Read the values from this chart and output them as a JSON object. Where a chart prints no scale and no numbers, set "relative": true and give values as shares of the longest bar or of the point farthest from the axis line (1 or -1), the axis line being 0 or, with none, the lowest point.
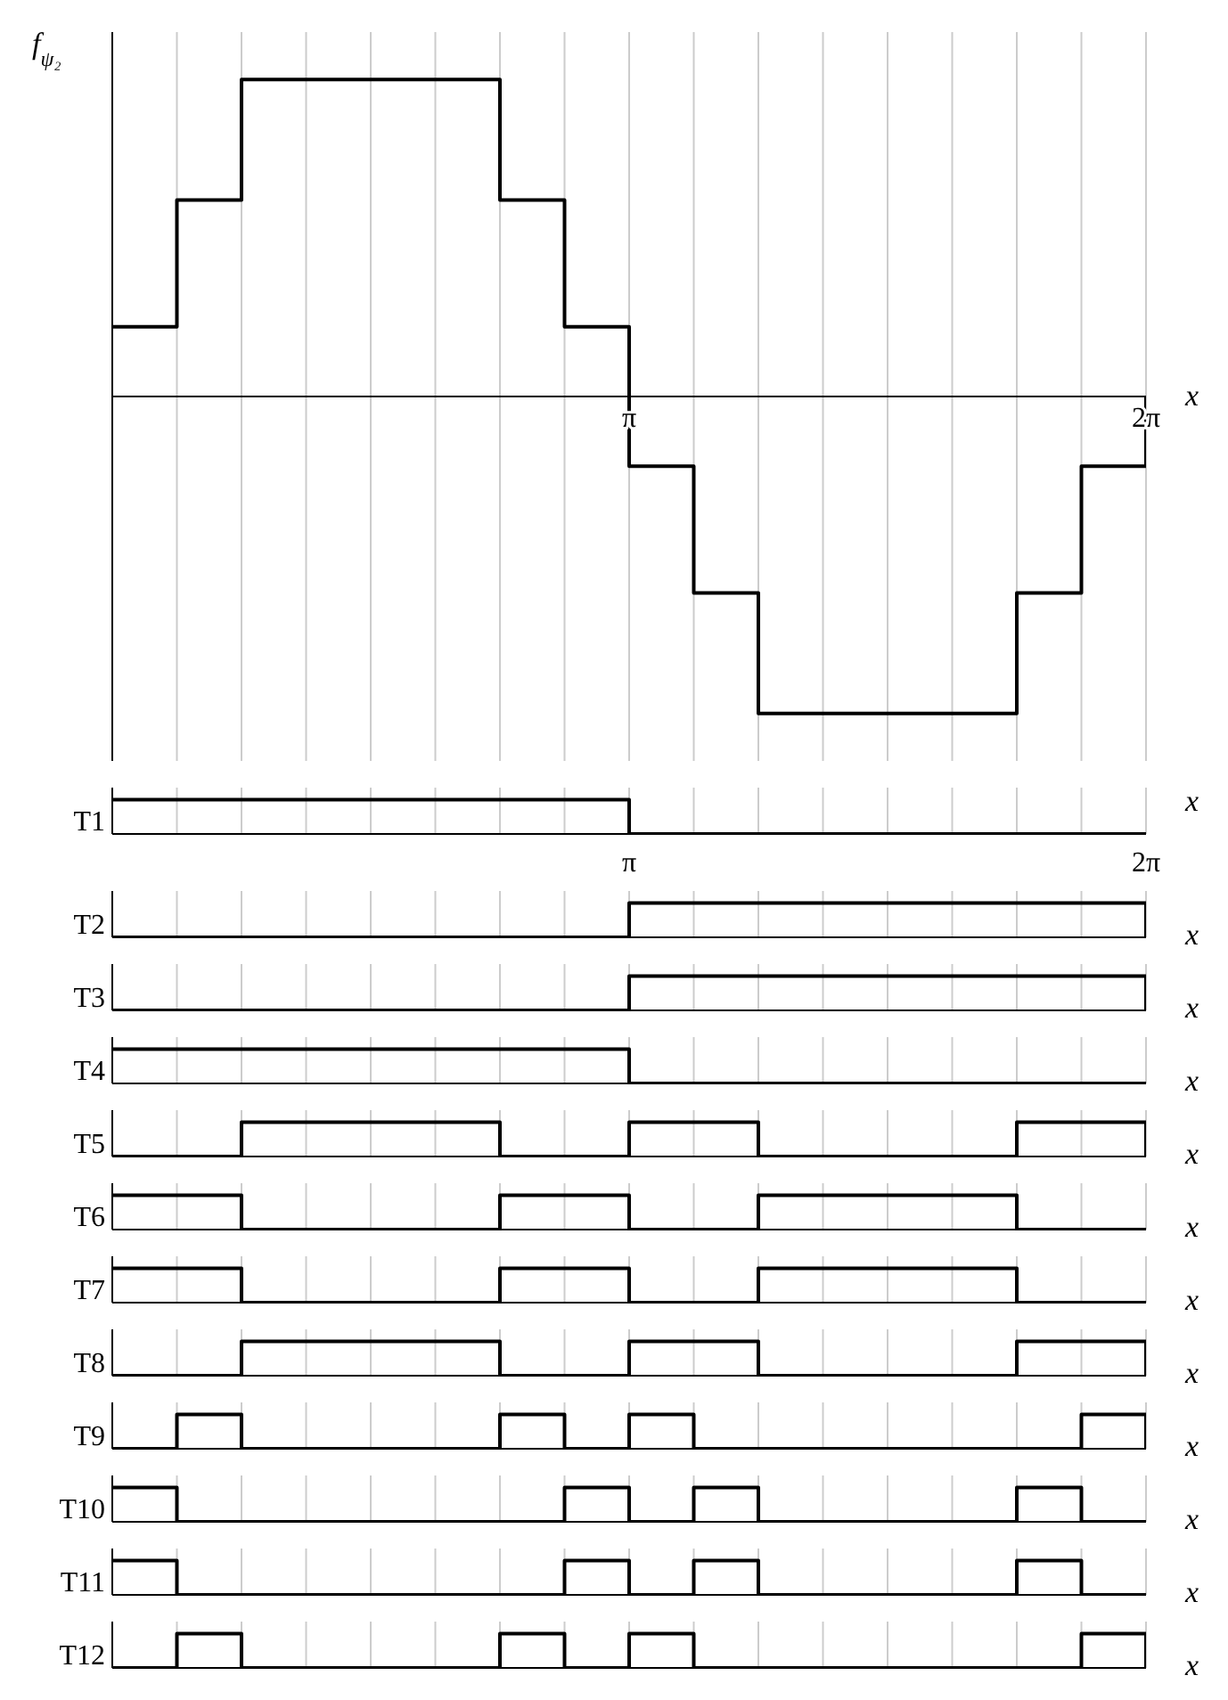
{
  "chart_data": [
    {
      "type": "step",
      "ylabel": "f$_{ψ₂}$",
      "xlabel": "x",
      "relative": true,
      "grid": "x",
      "tick_labels": "x",
      "color": "#000000",
      "xlim": [
        0,
        6.2832
      ],
      "xticks": [
        {
          "value": 0,
          "label": null
        },
        {
          "value": 0.3927,
          "label": null
        },
        {
          "value": 0.7854,
          "label": null
        },
        {
          "value": 1.1781,
          "label": null
        },
        {
          "value": 1.5708,
          "label": null
        },
        {
          "value": 1.9635,
          "label": null
        },
        {
          "value": 2.3562,
          "label": null
        },
        {
          "value": 2.7489,
          "label": null
        },
        {
          "value": 3.1416,
          "label": "π"
        },
        {
          "value": 3.5343,
          "label": null
        },
        {
          "value": 3.927,
          "label": null
        },
        {
          "value": 4.3197,
          "label": null
        },
        {
          "value": 4.7124,
          "label": null
        },
        {
          "value": 5.1051,
          "label": null
        },
        {
          "value": 5.4978,
          "label": null
        },
        {
          "value": 5.8905,
          "label": null
        },
        {
          "value": 6.2832,
          "label": "2π"
        }
      ],
      "x": [
        0,
        0.3927,
        0.7854,
        2.3562,
        2.7489,
        3.1416,
        3.5343,
        3.927,
        5.4978,
        5.8905,
        6.2832
      ],
      "values": [
        0.22,
        0.62,
        1,
        0.62,
        0.22,
        -0.22,
        -0.62,
        -1,
        -0.62,
        -0.22,
        0
      ]
    },
    {
      "type": "step",
      "ylabel": "T1",
      "xlabel": "x",
      "relative": true,
      "grid": "x",
      "tick_labels": "x",
      "color": "#000000",
      "xlim": [
        0,
        6.2832
      ],
      "xticks": [
        {
          "value": 0,
          "label": null
        },
        {
          "value": 0.3927,
          "label": null
        },
        {
          "value": 0.7854,
          "label": null
        },
        {
          "value": 1.1781,
          "label": null
        },
        {
          "value": 1.5708,
          "label": null
        },
        {
          "value": 1.9635,
          "label": null
        },
        {
          "value": 2.3562,
          "label": null
        },
        {
          "value": 2.7489,
          "label": null
        },
        {
          "value": 3.1416,
          "label": "π"
        },
        {
          "value": 3.5343,
          "label": null
        },
        {
          "value": 3.927,
          "label": null
        },
        {
          "value": 4.3197,
          "label": null
        },
        {
          "value": 4.7124,
          "label": null
        },
        {
          "value": 5.1051,
          "label": null
        },
        {
          "value": 5.4978,
          "label": null
        },
        {
          "value": 5.8905,
          "label": null
        },
        {
          "value": 6.2832,
          "label": "2π"
        }
      ],
      "x": [
        0,
        3.1416,
        6.2832
      ],
      "values": [
        1,
        0,
        0
      ]
    },
    {
      "type": "step",
      "ylabel": "T2",
      "xlabel": "x",
      "relative": true,
      "grid": "x",
      "tick_labels": false,
      "color": "#000000",
      "xlim": [
        0,
        6.2832
      ],
      "xticks": [
        {
          "value": 0,
          "label": null
        },
        {
          "value": 0.3927,
          "label": null
        },
        {
          "value": 0.7854,
          "label": null
        },
        {
          "value": 1.1781,
          "label": null
        },
        {
          "value": 1.5708,
          "label": null
        },
        {
          "value": 1.9635,
          "label": null
        },
        {
          "value": 2.3562,
          "label": null
        },
        {
          "value": 2.7489,
          "label": null
        },
        {
          "value": 3.1416,
          "label": null
        },
        {
          "value": 3.5343,
          "label": null
        },
        {
          "value": 3.927,
          "label": null
        },
        {
          "value": 4.3197,
          "label": null
        },
        {
          "value": 4.7124,
          "label": null
        },
        {
          "value": 5.1051,
          "label": null
        },
        {
          "value": 5.4978,
          "label": null
        },
        {
          "value": 5.8905,
          "label": null
        },
        {
          "value": 6.2832,
          "label": null
        }
      ],
      "x": [
        0,
        3.1416,
        6.2832
      ],
      "values": [
        0,
        1,
        0
      ]
    },
    {
      "type": "step",
      "ylabel": "T3",
      "xlabel": "x",
      "relative": true,
      "grid": "x",
      "tick_labels": false,
      "color": "#000000",
      "xlim": [
        0,
        6.2832
      ],
      "xticks": [
        {
          "value": 0,
          "label": null
        },
        {
          "value": 0.3927,
          "label": null
        },
        {
          "value": 0.7854,
          "label": null
        },
        {
          "value": 1.1781,
          "label": null
        },
        {
          "value": 1.5708,
          "label": null
        },
        {
          "value": 1.9635,
          "label": null
        },
        {
          "value": 2.3562,
          "label": null
        },
        {
          "value": 2.7489,
          "label": null
        },
        {
          "value": 3.1416,
          "label": null
        },
        {
          "value": 3.5343,
          "label": null
        },
        {
          "value": 3.927,
          "label": null
        },
        {
          "value": 4.3197,
          "label": null
        },
        {
          "value": 4.7124,
          "label": null
        },
        {
          "value": 5.1051,
          "label": null
        },
        {
          "value": 5.4978,
          "label": null
        },
        {
          "value": 5.8905,
          "label": null
        },
        {
          "value": 6.2832,
          "label": null
        }
      ],
      "x": [
        0,
        3.1416,
        6.2832
      ],
      "values": [
        0,
        1,
        0
      ]
    },
    {
      "type": "step",
      "ylabel": "T4",
      "xlabel": "x",
      "relative": true,
      "grid": "x",
      "tick_labels": false,
      "color": "#000000",
      "xlim": [
        0,
        6.2832
      ],
      "xticks": [
        {
          "value": 0,
          "label": null
        },
        {
          "value": 0.3927,
          "label": null
        },
        {
          "value": 0.7854,
          "label": null
        },
        {
          "value": 1.1781,
          "label": null
        },
        {
          "value": 1.5708,
          "label": null
        },
        {
          "value": 1.9635,
          "label": null
        },
        {
          "value": 2.3562,
          "label": null
        },
        {
          "value": 2.7489,
          "label": null
        },
        {
          "value": 3.1416,
          "label": null
        },
        {
          "value": 3.5343,
          "label": null
        },
        {
          "value": 3.927,
          "label": null
        },
        {
          "value": 4.3197,
          "label": null
        },
        {
          "value": 4.7124,
          "label": null
        },
        {
          "value": 5.1051,
          "label": null
        },
        {
          "value": 5.4978,
          "label": null
        },
        {
          "value": 5.8905,
          "label": null
        },
        {
          "value": 6.2832,
          "label": null
        }
      ],
      "x": [
        0,
        3.1416,
        6.2832
      ],
      "values": [
        1,
        0,
        0
      ]
    },
    {
      "type": "step",
      "ylabel": "T5",
      "xlabel": "x",
      "relative": true,
      "grid": "x",
      "tick_labels": false,
      "color": "#000000",
      "xlim": [
        0,
        6.2832
      ],
      "xticks": [
        {
          "value": 0,
          "label": null
        },
        {
          "value": 0.3927,
          "label": null
        },
        {
          "value": 0.7854,
          "label": null
        },
        {
          "value": 1.1781,
          "label": null
        },
        {
          "value": 1.5708,
          "label": null
        },
        {
          "value": 1.9635,
          "label": null
        },
        {
          "value": 2.3562,
          "label": null
        },
        {
          "value": 2.7489,
          "label": null
        },
        {
          "value": 3.1416,
          "label": null
        },
        {
          "value": 3.5343,
          "label": null
        },
        {
          "value": 3.927,
          "label": null
        },
        {
          "value": 4.3197,
          "label": null
        },
        {
          "value": 4.7124,
          "label": null
        },
        {
          "value": 5.1051,
          "label": null
        },
        {
          "value": 5.4978,
          "label": null
        },
        {
          "value": 5.8905,
          "label": null
        },
        {
          "value": 6.2832,
          "label": null
        }
      ],
      "x": [
        0,
        0.7854,
        2.3562,
        3.1416,
        3.927,
        5.4978,
        6.2832
      ],
      "values": [
        0,
        1,
        0,
        1,
        0,
        1,
        0
      ]
    },
    {
      "type": "step",
      "ylabel": "T6",
      "xlabel": "x",
      "relative": true,
      "grid": "x",
      "tick_labels": false,
      "color": "#000000",
      "xlim": [
        0,
        6.2832
      ],
      "xticks": [
        {
          "value": 0,
          "label": null
        },
        {
          "value": 0.3927,
          "label": null
        },
        {
          "value": 0.7854,
          "label": null
        },
        {
          "value": 1.1781,
          "label": null
        },
        {
          "value": 1.5708,
          "label": null
        },
        {
          "value": 1.9635,
          "label": null
        },
        {
          "value": 2.3562,
          "label": null
        },
        {
          "value": 2.7489,
          "label": null
        },
        {
          "value": 3.1416,
          "label": null
        },
        {
          "value": 3.5343,
          "label": null
        },
        {
          "value": 3.927,
          "label": null
        },
        {
          "value": 4.3197,
          "label": null
        },
        {
          "value": 4.7124,
          "label": null
        },
        {
          "value": 5.1051,
          "label": null
        },
        {
          "value": 5.4978,
          "label": null
        },
        {
          "value": 5.8905,
          "label": null
        },
        {
          "value": 6.2832,
          "label": null
        }
      ],
      "x": [
        0,
        0.7854,
        2.3562,
        3.1416,
        3.927,
        5.4978,
        6.2832
      ],
      "values": [
        1,
        0,
        1,
        0,
        1,
        0,
        0
      ]
    },
    {
      "type": "step",
      "ylabel": "T7",
      "xlabel": "x",
      "relative": true,
      "grid": "x",
      "tick_labels": false,
      "color": "#000000",
      "xlim": [
        0,
        6.2832
      ],
      "xticks": [
        {
          "value": 0,
          "label": null
        },
        {
          "value": 0.3927,
          "label": null
        },
        {
          "value": 0.7854,
          "label": null
        },
        {
          "value": 1.1781,
          "label": null
        },
        {
          "value": 1.5708,
          "label": null
        },
        {
          "value": 1.9635,
          "label": null
        },
        {
          "value": 2.3562,
          "label": null
        },
        {
          "value": 2.7489,
          "label": null
        },
        {
          "value": 3.1416,
          "label": null
        },
        {
          "value": 3.5343,
          "label": null
        },
        {
          "value": 3.927,
          "label": null
        },
        {
          "value": 4.3197,
          "label": null
        },
        {
          "value": 4.7124,
          "label": null
        },
        {
          "value": 5.1051,
          "label": null
        },
        {
          "value": 5.4978,
          "label": null
        },
        {
          "value": 5.8905,
          "label": null
        },
        {
          "value": 6.2832,
          "label": null
        }
      ],
      "x": [
        0,
        0.7854,
        2.3562,
        3.1416,
        3.927,
        5.4978,
        6.2832
      ],
      "values": [
        1,
        0,
        1,
        0,
        1,
        0,
        0
      ]
    },
    {
      "type": "step",
      "ylabel": "T8",
      "xlabel": "x",
      "relative": true,
      "grid": "x",
      "tick_labels": false,
      "color": "#000000",
      "xlim": [
        0,
        6.2832
      ],
      "xticks": [
        {
          "value": 0,
          "label": null
        },
        {
          "value": 0.3927,
          "label": null
        },
        {
          "value": 0.7854,
          "label": null
        },
        {
          "value": 1.1781,
          "label": null
        },
        {
          "value": 1.5708,
          "label": null
        },
        {
          "value": 1.9635,
          "label": null
        },
        {
          "value": 2.3562,
          "label": null
        },
        {
          "value": 2.7489,
          "label": null
        },
        {
          "value": 3.1416,
          "label": null
        },
        {
          "value": 3.5343,
          "label": null
        },
        {
          "value": 3.927,
          "label": null
        },
        {
          "value": 4.3197,
          "label": null
        },
        {
          "value": 4.7124,
          "label": null
        },
        {
          "value": 5.1051,
          "label": null
        },
        {
          "value": 5.4978,
          "label": null
        },
        {
          "value": 5.8905,
          "label": null
        },
        {
          "value": 6.2832,
          "label": null
        }
      ],
      "x": [
        0,
        0.7854,
        2.3562,
        3.1416,
        3.927,
        5.4978,
        6.2832
      ],
      "values": [
        0,
        1,
        0,
        1,
        0,
        1,
        0
      ]
    },
    {
      "type": "step",
      "ylabel": "T9",
      "xlabel": "x",
      "relative": true,
      "grid": "x",
      "tick_labels": false,
      "color": "#000000",
      "xlim": [
        0,
        6.2832
      ],
      "xticks": [
        {
          "value": 0,
          "label": null
        },
        {
          "value": 0.3927,
          "label": null
        },
        {
          "value": 0.7854,
          "label": null
        },
        {
          "value": 1.1781,
          "label": null
        },
        {
          "value": 1.5708,
          "label": null
        },
        {
          "value": 1.9635,
          "label": null
        },
        {
          "value": 2.3562,
          "label": null
        },
        {
          "value": 2.7489,
          "label": null
        },
        {
          "value": 3.1416,
          "label": null
        },
        {
          "value": 3.5343,
          "label": null
        },
        {
          "value": 3.927,
          "label": null
        },
        {
          "value": 4.3197,
          "label": null
        },
        {
          "value": 4.7124,
          "label": null
        },
        {
          "value": 5.1051,
          "label": null
        },
        {
          "value": 5.4978,
          "label": null
        },
        {
          "value": 5.8905,
          "label": null
        },
        {
          "value": 6.2832,
          "label": null
        }
      ],
      "x": [
        0,
        0.3927,
        0.7854,
        2.3562,
        2.7489,
        3.1416,
        3.5343,
        5.8905,
        6.2832
      ],
      "values": [
        0,
        1,
        0,
        1,
        0,
        1,
        0,
        1,
        0
      ]
    },
    {
      "type": "step",
      "ylabel": "T10",
      "xlabel": "x",
      "relative": true,
      "grid": "x",
      "tick_labels": false,
      "color": "#000000",
      "xlim": [
        0,
        6.2832
      ],
      "xticks": [
        {
          "value": 0,
          "label": null
        },
        {
          "value": 0.3927,
          "label": null
        },
        {
          "value": 0.7854,
          "label": null
        },
        {
          "value": 1.1781,
          "label": null
        },
        {
          "value": 1.5708,
          "label": null
        },
        {
          "value": 1.9635,
          "label": null
        },
        {
          "value": 2.3562,
          "label": null
        },
        {
          "value": 2.7489,
          "label": null
        },
        {
          "value": 3.1416,
          "label": null
        },
        {
          "value": 3.5343,
          "label": null
        },
        {
          "value": 3.927,
          "label": null
        },
        {
          "value": 4.3197,
          "label": null
        },
        {
          "value": 4.7124,
          "label": null
        },
        {
          "value": 5.1051,
          "label": null
        },
        {
          "value": 5.4978,
          "label": null
        },
        {
          "value": 5.8905,
          "label": null
        },
        {
          "value": 6.2832,
          "label": null
        }
      ],
      "x": [
        0,
        0.3927,
        2.7489,
        3.1416,
        3.5343,
        3.927,
        5.4978,
        5.8905,
        6.2832
      ],
      "values": [
        1,
        0,
        1,
        0,
        1,
        0,
        1,
        0,
        0
      ]
    },
    {
      "type": "step",
      "ylabel": "T11",
      "xlabel": "x",
      "relative": true,
      "grid": "x",
      "tick_labels": false,
      "color": "#000000",
      "xlim": [
        0,
        6.2832
      ],
      "xticks": [
        {
          "value": 0,
          "label": null
        },
        {
          "value": 0.3927,
          "label": null
        },
        {
          "value": 0.7854,
          "label": null
        },
        {
          "value": 1.1781,
          "label": null
        },
        {
          "value": 1.5708,
          "label": null
        },
        {
          "value": 1.9635,
          "label": null
        },
        {
          "value": 2.3562,
          "label": null
        },
        {
          "value": 2.7489,
          "label": null
        },
        {
          "value": 3.1416,
          "label": null
        },
        {
          "value": 3.5343,
          "label": null
        },
        {
          "value": 3.927,
          "label": null
        },
        {
          "value": 4.3197,
          "label": null
        },
        {
          "value": 4.7124,
          "label": null
        },
        {
          "value": 5.1051,
          "label": null
        },
        {
          "value": 5.4978,
          "label": null
        },
        {
          "value": 5.8905,
          "label": null
        },
        {
          "value": 6.2832,
          "label": null
        }
      ],
      "x": [
        0,
        0.3927,
        2.7489,
        3.1416,
        3.5343,
        3.927,
        5.4978,
        5.8905,
        6.2832
      ],
      "values": [
        1,
        0,
        1,
        0,
        1,
        0,
        1,
        0,
        0
      ]
    },
    {
      "type": "step",
      "ylabel": "T12",
      "xlabel": "x",
      "relative": true,
      "grid": "x",
      "tick_labels": false,
      "color": "#000000",
      "xlim": [
        0,
        6.2832
      ],
      "xticks": [
        {
          "value": 0,
          "label": null
        },
        {
          "value": 0.3927,
          "label": null
        },
        {
          "value": 0.7854,
          "label": null
        },
        {
          "value": 1.1781,
          "label": null
        },
        {
          "value": 1.5708,
          "label": null
        },
        {
          "value": 1.9635,
          "label": null
        },
        {
          "value": 2.3562,
          "label": null
        },
        {
          "value": 2.7489,
          "label": null
        },
        {
          "value": 3.1416,
          "label": null
        },
        {
          "value": 3.5343,
          "label": null
        },
        {
          "value": 3.927,
          "label": null
        },
        {
          "value": 4.3197,
          "label": null
        },
        {
          "value": 4.7124,
          "label": null
        },
        {
          "value": 5.1051,
          "label": null
        },
        {
          "value": 5.4978,
          "label": null
        },
        {
          "value": 5.8905,
          "label": null
        },
        {
          "value": 6.2832,
          "label": null
        }
      ],
      "x": [
        0,
        0.3927,
        0.7854,
        2.3562,
        2.7489,
        3.1416,
        3.5343,
        5.8905,
        6.2832
      ],
      "values": [
        0,
        1,
        0,
        1,
        0,
        1,
        0,
        1,
        0
      ]
    }
  ]
}
